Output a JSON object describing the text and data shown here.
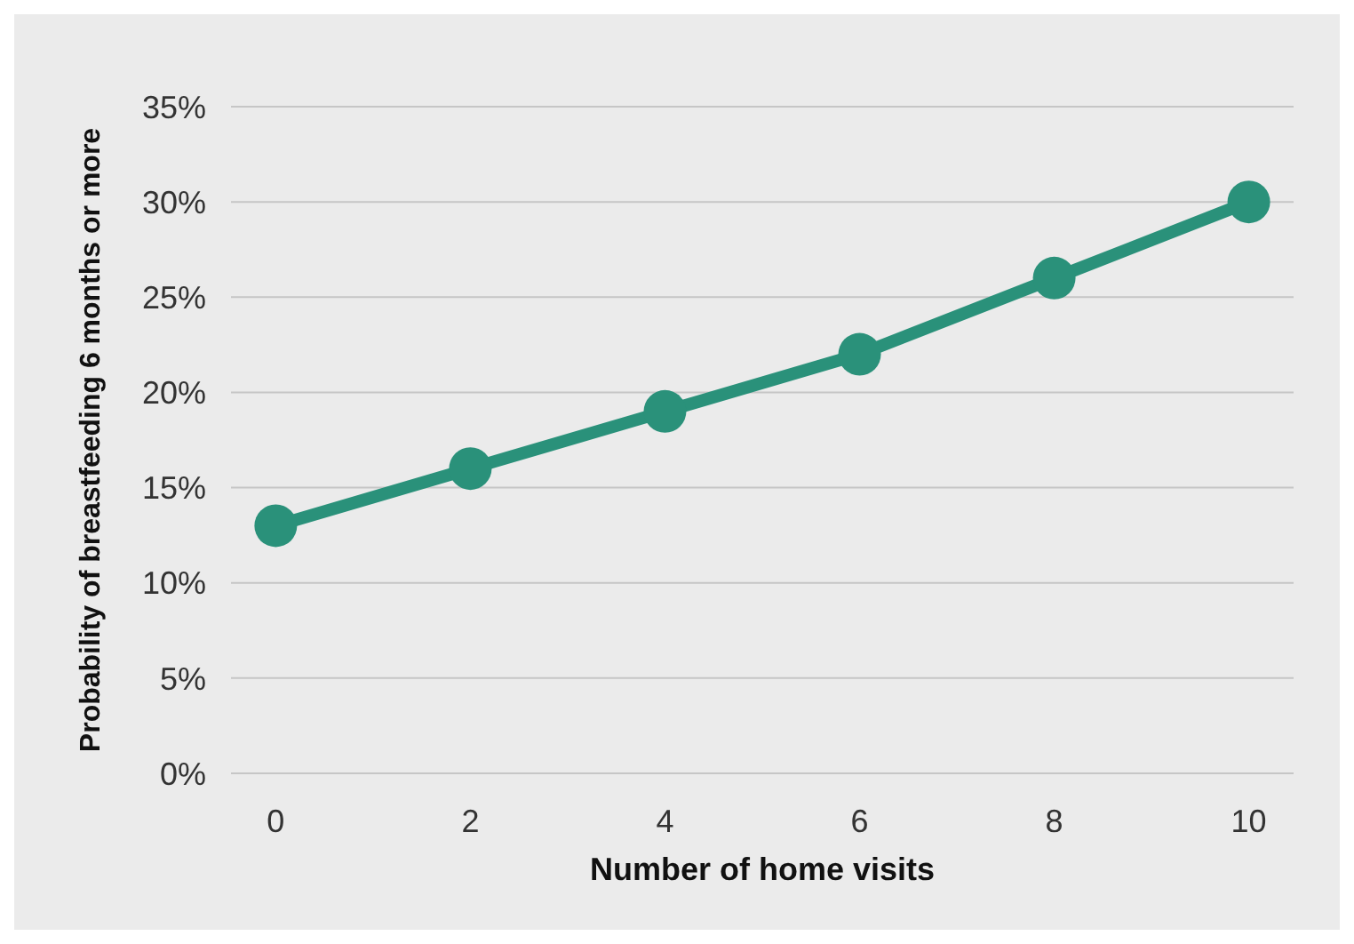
{
  "chart_data": {
    "type": "line",
    "xlabel": "Number of home visits",
    "ylabel": "Probability of breastfeeding 6 months or more",
    "x": [
      0,
      2,
      4,
      6,
      8,
      10
    ],
    "series": [
      {
        "color": "#2a917a",
        "values": [
          13,
          16,
          19,
          22,
          26,
          30
        ]
      }
    ],
    "xlim": [
      -0.46,
      10.46
    ],
    "xticks": [
      0,
      2,
      4,
      6,
      8,
      10
    ],
    "ylim": [
      0,
      35
    ],
    "yticks": [
      {
        "value": 0,
        "label": "0%"
      },
      {
        "value": 5,
        "label": "5%"
      },
      {
        "value": 10,
        "label": "10%"
      },
      {
        "value": 15,
        "label": "15%"
      },
      {
        "value": 20,
        "label": "20%"
      },
      {
        "value": 25,
        "label": "25%"
      },
      {
        "value": 30,
        "label": "30%"
      },
      {
        "value": 35,
        "label": "35%"
      }
    ],
    "grid": "y",
    "marker": "circle",
    "line_style": "solid",
    "legend": false
  }
}
